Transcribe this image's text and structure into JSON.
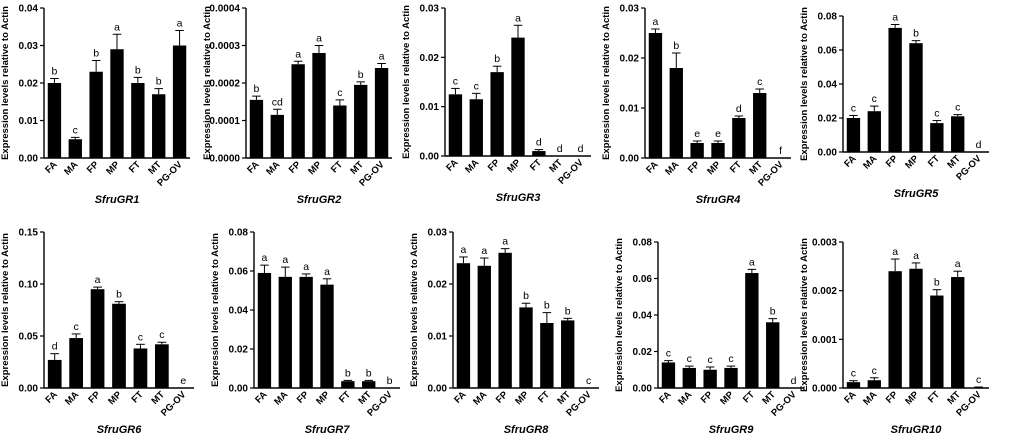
{
  "figure": {
    "ylabel": "Expression levels relative to Actin",
    "bar_color": "#000000"
  },
  "chart_data": [
    {
      "type": "bar",
      "title": "SfruGR1",
      "ylabel": "Expression levels relative to Actin",
      "categories": [
        "FA",
        "MA",
        "FP",
        "MP",
        "FT",
        "MT",
        "PG-OV"
      ],
      "values": [
        0.02,
        0.005,
        0.023,
        0.029,
        0.02,
        0.017,
        0.03
      ],
      "errors": [
        0.0012,
        0.0005,
        0.003,
        0.004,
        0.0015,
        0.0015,
        0.004
      ],
      "letters": [
        "b",
        "c",
        "b",
        "a",
        "b",
        "b",
        "a"
      ],
      "ylim": [
        0,
        0.04
      ],
      "yticks": [
        "0.00",
        "0.01",
        "0.02",
        "0.03",
        "0.04"
      ]
    },
    {
      "type": "bar",
      "title": "SfruGR2",
      "ylabel": "Expression levels relative to Actin",
      "categories": [
        "FA",
        "MA",
        "FP",
        "MP",
        "FT",
        "MT",
        "PG-OV"
      ],
      "values": [
        0.000155,
        0.000115,
        0.00025,
        0.00028,
        0.00014,
        0.000195,
        0.00024
      ],
      "errors": [
        1e-05,
        1.5e-05,
        8e-06,
        2e-05,
        1.5e-05,
        8e-06,
        1.2e-05
      ],
      "letters": [
        "b",
        "cd",
        "a",
        "a",
        "c",
        "b",
        "a"
      ],
      "ylim": [
        0,
        0.0004
      ],
      "yticks": [
        "0.0000",
        "0.0001",
        "0.0002",
        "0.0003",
        "0.0004"
      ]
    },
    {
      "type": "bar",
      "title": "SfruGR3",
      "ylabel": "Expression levels relative to Actin",
      "categories": [
        "FA",
        "MA",
        "FP",
        "MP",
        "FT",
        "MT",
        "PG-OV"
      ],
      "values": [
        0.0125,
        0.0115,
        0.017,
        0.024,
        0.001,
        0,
        0
      ],
      "errors": [
        0.0012,
        0.0012,
        0.0012,
        0.0025,
        0.0003,
        0,
        0
      ],
      "letters": [
        "c",
        "c",
        "b",
        "a",
        "d",
        "d",
        "d"
      ],
      "ylim": [
        0,
        0.03
      ],
      "yticks": [
        "0.00",
        "0.01",
        "0.02",
        "0.03"
      ]
    },
    {
      "type": "bar",
      "title": "SfruGR4",
      "ylabel": "Expression levels relative to Actin",
      "categories": [
        "FA",
        "MA",
        "FP",
        "MP",
        "FT",
        "MT",
        "PG-OV"
      ],
      "values": [
        0.025,
        0.018,
        0.003,
        0.003,
        0.008,
        0.013,
        0
      ],
      "errors": [
        0.0008,
        0.003,
        0.0004,
        0.0004,
        0.0004,
        0.0008,
        0
      ],
      "letters": [
        "a",
        "b",
        "e",
        "e",
        "d",
        "c",
        "f"
      ],
      "ylim": [
        0,
        0.03
      ],
      "yticks": [
        "0.00",
        "0.01",
        "0.02",
        "0.03"
      ]
    },
    {
      "type": "bar",
      "title": "SfruGR5",
      "ylabel": "Expression levels relative to Actin",
      "categories": [
        "FA",
        "MA",
        "FP",
        "MP",
        "FT",
        "MT",
        "PG-OV"
      ],
      "values": [
        0.02,
        0.024,
        0.073,
        0.064,
        0.017,
        0.021,
        0
      ],
      "errors": [
        0.0015,
        0.003,
        0.002,
        0.0015,
        0.0015,
        0.001,
        0
      ],
      "letters": [
        "c",
        "c",
        "a",
        "b",
        "c",
        "c",
        "d"
      ],
      "ylim": [
        0,
        0.08
      ],
      "yticks": [
        "0.00",
        "0.02",
        "0.04",
        "0.06",
        "0.08"
      ]
    },
    {
      "type": "bar",
      "title": "SfruGR6",
      "ylabel": "Expression levels relative to Actin",
      "categories": [
        "FA",
        "MA",
        "FP",
        "MP",
        "FT",
        "MT",
        "PG-OV"
      ],
      "values": [
        0.027,
        0.048,
        0.095,
        0.081,
        0.038,
        0.042,
        0
      ],
      "errors": [
        0.006,
        0.004,
        0.002,
        0.002,
        0.004,
        0.002,
        0
      ],
      "letters": [
        "d",
        "c",
        "a",
        "b",
        "c",
        "c",
        "e"
      ],
      "ylim": [
        0,
        0.15
      ],
      "yticks": [
        "0.00",
        "0.05",
        "0.10",
        "0.15"
      ]
    },
    {
      "type": "bar",
      "title": "SfruGR7",
      "ylabel": "Expression levels relative to Actin",
      "categories": [
        "FA",
        "MA",
        "FP",
        "MP",
        "FT",
        "MT",
        "PG-OV"
      ],
      "values": [
        0.059,
        0.057,
        0.057,
        0.053,
        0.0035,
        0.0035,
        0
      ],
      "errors": [
        0.004,
        0.005,
        0.0015,
        0.003,
        0.0004,
        0.0004,
        0
      ],
      "letters": [
        "a",
        "a",
        "a",
        "a",
        "b",
        "b",
        "b"
      ],
      "ylim": [
        0,
        0.08
      ],
      "yticks": [
        "0.00",
        "0.02",
        "0.04",
        "0.06",
        "0.08"
      ]
    },
    {
      "type": "bar",
      "title": "SfruGR8",
      "ylabel": "Expression levels relative to Actin",
      "categories": [
        "FA",
        "MA",
        "FP",
        "MP",
        "FT",
        "MT",
        "PG-OV"
      ],
      "values": [
        0.024,
        0.0235,
        0.026,
        0.0155,
        0.0125,
        0.013,
        0
      ],
      "errors": [
        0.0012,
        0.0015,
        0.0008,
        0.0008,
        0.002,
        0.0004,
        0
      ],
      "letters": [
        "a",
        "a",
        "a",
        "b",
        "b",
        "b",
        "c"
      ],
      "ylim": [
        0,
        0.03
      ],
      "yticks": [
        "0.00",
        "0.01",
        "0.02",
        "0.03"
      ]
    },
    {
      "type": "bar",
      "title": "SfruGR9",
      "ylabel": "Expression levels relative to Actin",
      "categories": [
        "FA",
        "MA",
        "FP",
        "MP",
        "FT",
        "MT",
        "PG-OV"
      ],
      "values": [
        0.014,
        0.011,
        0.01,
        0.011,
        0.063,
        0.036,
        0
      ],
      "errors": [
        0.001,
        0.001,
        0.0015,
        0.001,
        0.002,
        0.002,
        0
      ],
      "letters": [
        "c",
        "c",
        "c",
        "c",
        "a",
        "b",
        "d"
      ],
      "ylim": [
        0,
        0.08
      ],
      "yticks": [
        "0.00",
        "0.02",
        "0.04",
        "0.06",
        "0.08"
      ]
    },
    {
      "type": "bar",
      "title": "SfruGR10",
      "ylabel": "Expression levels relative to Actin",
      "categories": [
        "FA",
        "MA",
        "FP",
        "MP",
        "FT",
        "MT",
        "PG-OV"
      ],
      "values": [
        0.00012,
        0.00016,
        0.0024,
        0.00245,
        0.0019,
        0.00228,
        1e-05
      ],
      "errors": [
        3e-05,
        5e-05,
        0.00025,
        0.00012,
        0.00012,
        0.00012,
        1e-05
      ],
      "letters": [
        "c",
        "c",
        "a",
        "a",
        "b",
        "a",
        "c"
      ],
      "ylim": [
        0,
        0.003
      ],
      "yticks": [
        "0.000",
        "0.001",
        "0.002",
        "0.003"
      ]
    }
  ]
}
